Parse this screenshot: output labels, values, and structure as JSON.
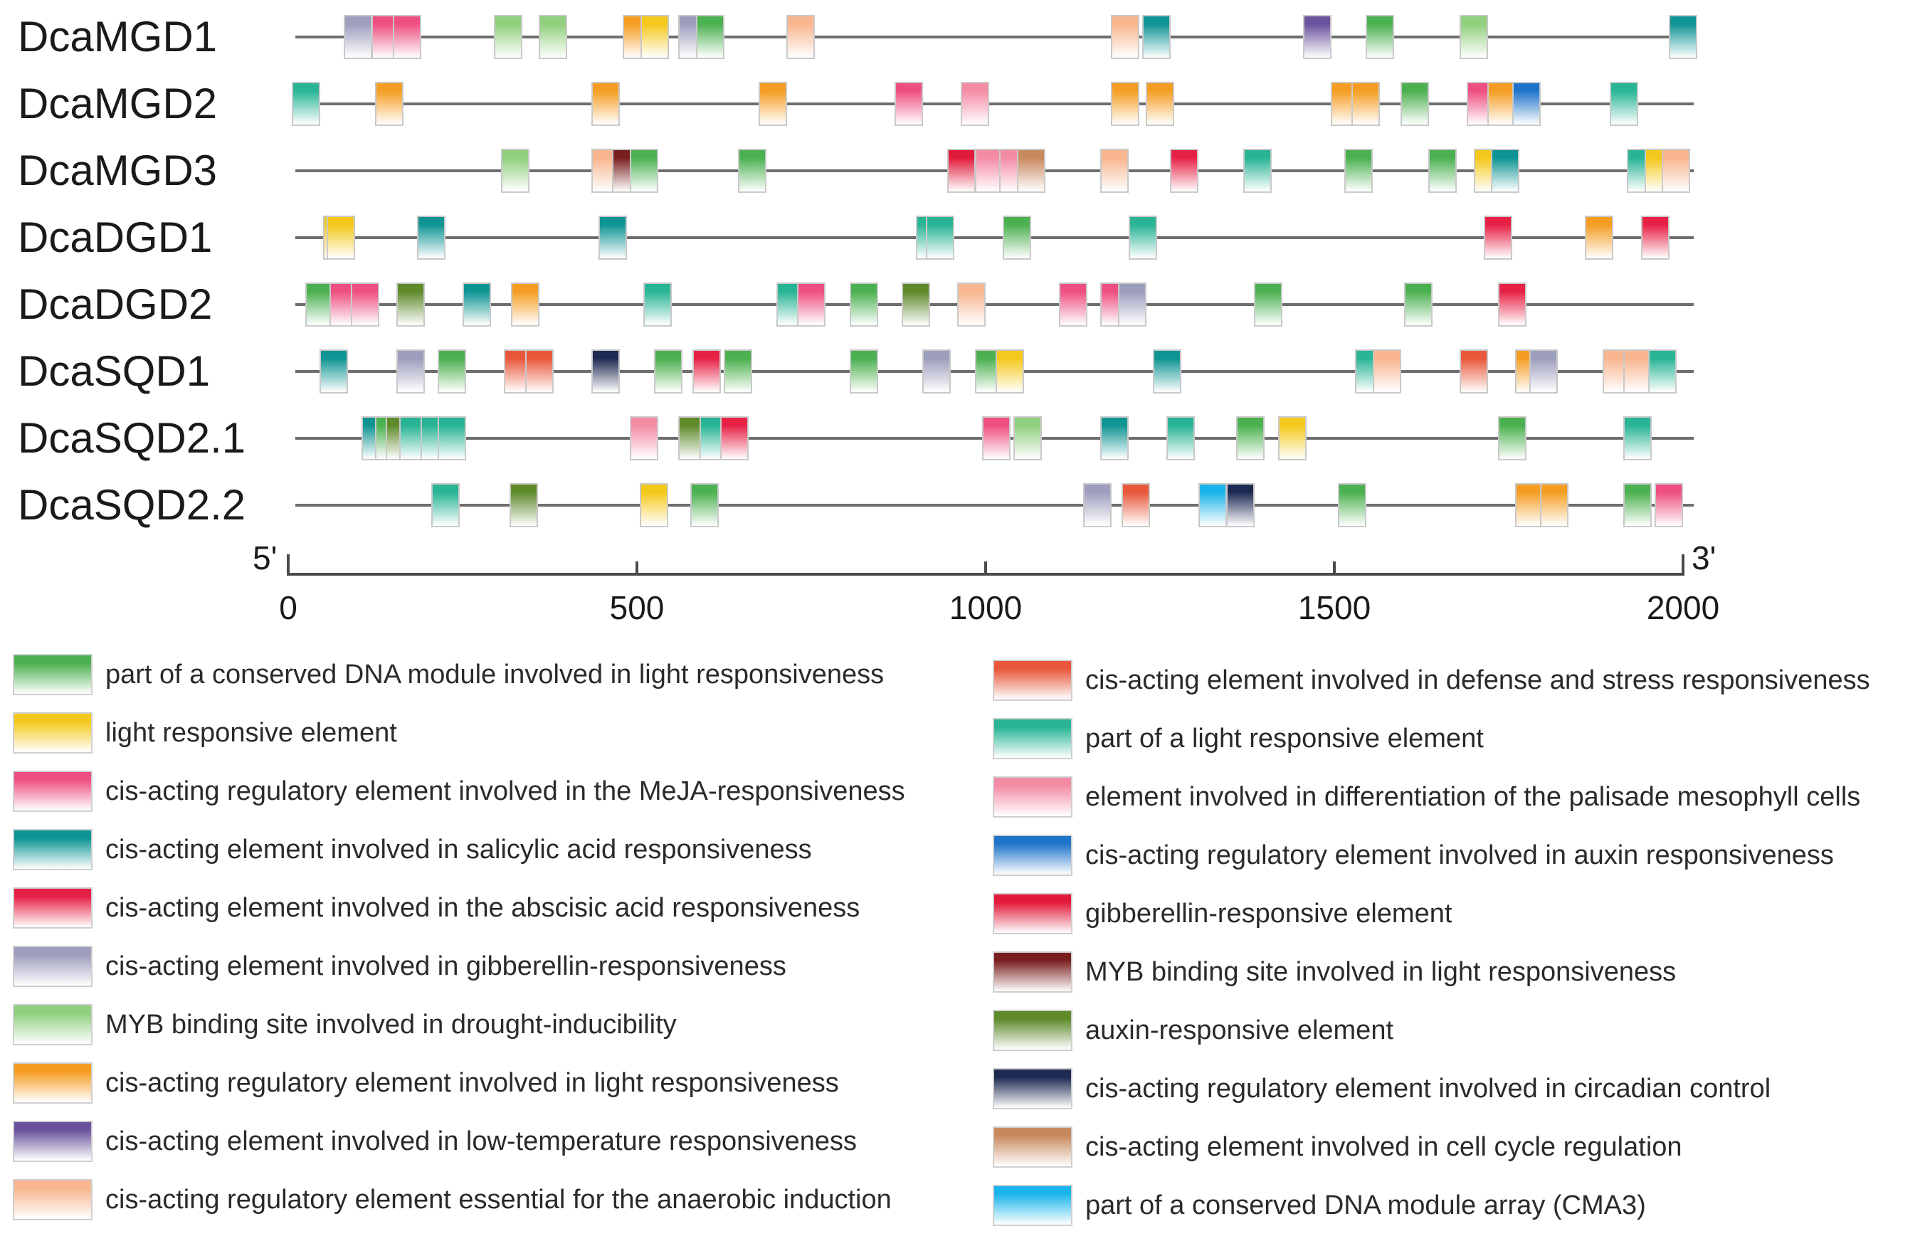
{
  "motif_types": [
    {
      "key": "A",
      "label": "part of a conserved DNA module involved in light responsiveness",
      "color": "#4bb04f"
    },
    {
      "key": "B",
      "label": "light responsive element",
      "color": "#f4c81a"
    },
    {
      "key": "C",
      "label": "cis-acting regulatory element involved in the MeJA-responsiveness",
      "color": "#ee4f80"
    },
    {
      "key": "D",
      "label": "cis-acting element involved in salicylic acid responsiveness",
      "color": "#0e9493"
    },
    {
      "key": "E",
      "label": "cis-acting element involved in the abscisic acid responsiveness",
      "color": "#e72045"
    },
    {
      "key": "F",
      "label": "cis-acting element involved in gibberellin-responsiveness",
      "color": "#9d9dbd"
    },
    {
      "key": "G",
      "label": "MYB binding site involved in drought-inducibility",
      "color": "#90cf7e"
    },
    {
      "key": "H",
      "label": "cis-acting regulatory element involved in light responsiveness",
      "color": "#f59d22"
    },
    {
      "key": "I",
      "label": "cis-acting element involved in low-temperature responsiveness",
      "color": "#6a529d"
    },
    {
      "key": "J",
      "label": "cis-acting regulatory element essential for the anaerobic induction",
      "color": "#f8b58e"
    },
    {
      "key": "K",
      "label": "cis-acting element involved in defense and stress responsiveness",
      "color": "#e8573a"
    },
    {
      "key": "L",
      "label": "part of a light responsive element",
      "color": "#28b495"
    },
    {
      "key": "M",
      "label": "element involved in differentiation of the palisade mesophyll cells",
      "color": "#f48ba5"
    },
    {
      "key": "N",
      "label": "cis-acting regulatory element involved in auxin responsiveness",
      "color": "#1d74c9"
    },
    {
      "key": "O",
      "label": "gibberellin-responsive element",
      "color": "#e1193a"
    },
    {
      "key": "P",
      "label": "MYB binding site involved in light responsiveness",
      "color": "#7a1f1f"
    },
    {
      "key": "Q",
      "label": "auxin-responsive element",
      "color": "#5e8a2a"
    },
    {
      "key": "R",
      "label": "cis-acting regulatory element involved in circadian control",
      "color": "#1d2a52"
    },
    {
      "key": "S",
      "label": "cis-acting element involved in cell cycle regulation",
      "color": "#c9895e"
    },
    {
      "key": "T",
      "label": "part of a conserved DNA module array (CMA3)",
      "color": "#19b4ea"
    }
  ],
  "axis": {
    "min": 0,
    "max": 2000,
    "ticks": [
      0,
      500,
      1000,
      1500,
      2000
    ],
    "start_label": "5'",
    "end_label": "3'"
  },
  "genes": [
    {
      "name": "DcaMGD1",
      "motifs": [
        {
          "pos": 100,
          "type": "F"
        },
        {
          "pos": 140,
          "type": "C"
        },
        {
          "pos": 170,
          "type": "C"
        },
        {
          "pos": 315,
          "type": "G"
        },
        {
          "pos": 380,
          "type": "G"
        },
        {
          "pos": 500,
          "type": "H"
        },
        {
          "pos": 525,
          "type": "B"
        },
        {
          "pos": 580,
          "type": "F"
        },
        {
          "pos": 605,
          "type": "A"
        },
        {
          "pos": 735,
          "type": "J"
        },
        {
          "pos": 1200,
          "type": "J"
        },
        {
          "pos": 1245,
          "type": "D"
        },
        {
          "pos": 1475,
          "type": "I"
        },
        {
          "pos": 1565,
          "type": "A"
        },
        {
          "pos": 1700,
          "type": "G"
        },
        {
          "pos": 2000,
          "type": "D"
        }
      ]
    },
    {
      "name": "DcaMGD2",
      "motifs": [
        {
          "pos": 25,
          "type": "L"
        },
        {
          "pos": 145,
          "type": "H"
        },
        {
          "pos": 455,
          "type": "H"
        },
        {
          "pos": 695,
          "type": "H"
        },
        {
          "pos": 890,
          "type": "C"
        },
        {
          "pos": 985,
          "type": "M"
        },
        {
          "pos": 1200,
          "type": "H"
        },
        {
          "pos": 1250,
          "type": "H"
        },
        {
          "pos": 1515,
          "type": "H"
        },
        {
          "pos": 1545,
          "type": "H"
        },
        {
          "pos": 1615,
          "type": "A"
        },
        {
          "pos": 1710,
          "type": "C"
        },
        {
          "pos": 1740,
          "type": "H"
        },
        {
          "pos": 1775,
          "type": "N"
        },
        {
          "pos": 1915,
          "type": "L"
        }
      ]
    },
    {
      "name": "DcaMGD3",
      "motifs": [
        {
          "pos": 325,
          "type": "G"
        },
        {
          "pos": 455,
          "type": "J"
        },
        {
          "pos": 485,
          "type": "P"
        },
        {
          "pos": 510,
          "type": "A"
        },
        {
          "pos": 665,
          "type": "A"
        },
        {
          "pos": 965,
          "type": "O"
        },
        {
          "pos": 1005,
          "type": "M"
        },
        {
          "pos": 1040,
          "type": "M"
        },
        {
          "pos": 1065,
          "type": "S"
        },
        {
          "pos": 1185,
          "type": "J"
        },
        {
          "pos": 1285,
          "type": "E"
        },
        {
          "pos": 1390,
          "type": "L"
        },
        {
          "pos": 1535,
          "type": "A"
        },
        {
          "pos": 1655,
          "type": "A"
        },
        {
          "pos": 1720,
          "type": "B"
        },
        {
          "pos": 1745,
          "type": "D"
        },
        {
          "pos": 1940,
          "type": "L"
        },
        {
          "pos": 1965,
          "type": "B"
        },
        {
          "pos": 1990,
          "type": "J"
        }
      ]
    },
    {
      "name": "DcaDGD1",
      "motifs": [
        {
          "pos": 70,
          "type": "B"
        },
        {
          "pos": 75,
          "type": "B"
        },
        {
          "pos": 205,
          "type": "D"
        },
        {
          "pos": 465,
          "type": "D"
        },
        {
          "pos": 920,
          "type": "L"
        },
        {
          "pos": 935,
          "type": "L"
        },
        {
          "pos": 1045,
          "type": "A"
        },
        {
          "pos": 1225,
          "type": "L"
        },
        {
          "pos": 1735,
          "type": "E"
        },
        {
          "pos": 1880,
          "type": "H"
        },
        {
          "pos": 1960,
          "type": "E"
        }
      ]
    },
    {
      "name": "DcaDGD2",
      "motifs": [
        {
          "pos": 45,
          "type": "A"
        },
        {
          "pos": 80,
          "type": "C"
        },
        {
          "pos": 110,
          "type": "C"
        },
        {
          "pos": 175,
          "type": "Q"
        },
        {
          "pos": 270,
          "type": "D"
        },
        {
          "pos": 340,
          "type": "H"
        },
        {
          "pos": 530,
          "type": "L"
        },
        {
          "pos": 720,
          "type": "L"
        },
        {
          "pos": 750,
          "type": "C"
        },
        {
          "pos": 825,
          "type": "A"
        },
        {
          "pos": 900,
          "type": "Q"
        },
        {
          "pos": 980,
          "type": "J"
        },
        {
          "pos": 1125,
          "type": "C"
        },
        {
          "pos": 1185,
          "type": "C"
        },
        {
          "pos": 1210,
          "type": "F"
        },
        {
          "pos": 1405,
          "type": "A"
        },
        {
          "pos": 1620,
          "type": "A"
        },
        {
          "pos": 1755,
          "type": "E"
        }
      ]
    },
    {
      "name": "DcaSQD1",
      "motifs": [
        {
          "pos": 65,
          "type": "D"
        },
        {
          "pos": 175,
          "type": "F"
        },
        {
          "pos": 235,
          "type": "A"
        },
        {
          "pos": 330,
          "type": "K"
        },
        {
          "pos": 360,
          "type": "K"
        },
        {
          "pos": 455,
          "type": "R"
        },
        {
          "pos": 545,
          "type": "A"
        },
        {
          "pos": 600,
          "type": "E"
        },
        {
          "pos": 645,
          "type": "A"
        },
        {
          "pos": 825,
          "type": "A"
        },
        {
          "pos": 930,
          "type": "F"
        },
        {
          "pos": 1005,
          "type": "A"
        },
        {
          "pos": 1035,
          "type": "B"
        },
        {
          "pos": 1260,
          "type": "D"
        },
        {
          "pos": 1550,
          "type": "L"
        },
        {
          "pos": 1575,
          "type": "J"
        },
        {
          "pos": 1700,
          "type": "K"
        },
        {
          "pos": 1780,
          "type": "H"
        },
        {
          "pos": 1800,
          "type": "F"
        },
        {
          "pos": 1905,
          "type": "J"
        },
        {
          "pos": 1935,
          "type": "J"
        },
        {
          "pos": 1970,
          "type": "L"
        }
      ]
    },
    {
      "name": "DcaSQD2.1",
      "motifs": [
        {
          "pos": 125,
          "type": "D"
        },
        {
          "pos": 145,
          "type": "A"
        },
        {
          "pos": 160,
          "type": "Q"
        },
        {
          "pos": 180,
          "type": "L"
        },
        {
          "pos": 210,
          "type": "L"
        },
        {
          "pos": 235,
          "type": "L"
        },
        {
          "pos": 510,
          "type": "M"
        },
        {
          "pos": 580,
          "type": "Q"
        },
        {
          "pos": 610,
          "type": "L"
        },
        {
          "pos": 640,
          "type": "E"
        },
        {
          "pos": 1015,
          "type": "C"
        },
        {
          "pos": 1060,
          "type": "G"
        },
        {
          "pos": 1185,
          "type": "D"
        },
        {
          "pos": 1280,
          "type": "L"
        },
        {
          "pos": 1380,
          "type": "A"
        },
        {
          "pos": 1440,
          "type": "B"
        },
        {
          "pos": 1755,
          "type": "A"
        },
        {
          "pos": 1935,
          "type": "L"
        }
      ]
    },
    {
      "name": "DcaSQD2.2",
      "motifs": [
        {
          "pos": 225,
          "type": "L"
        },
        {
          "pos": 338,
          "type": "Q"
        },
        {
          "pos": 524,
          "type": "B"
        },
        {
          "pos": 597,
          "type": "A"
        },
        {
          "pos": 1160,
          "type": "F"
        },
        {
          "pos": 1215,
          "type": "K"
        },
        {
          "pos": 1325,
          "type": "T"
        },
        {
          "pos": 1365,
          "type": "R"
        },
        {
          "pos": 1525,
          "type": "A"
        },
        {
          "pos": 1780,
          "type": "H"
        },
        {
          "pos": 1815,
          "type": "H"
        },
        {
          "pos": 1935,
          "type": "A"
        },
        {
          "pos": 1980,
          "type": "C"
        }
      ]
    }
  ]
}
